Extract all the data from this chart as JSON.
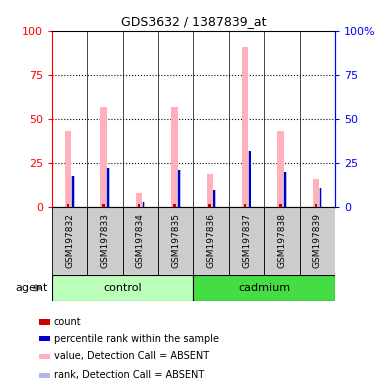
{
  "title": "GDS3632 / 1387839_at",
  "samples": [
    "GSM197832",
    "GSM197833",
    "GSM197834",
    "GSM197835",
    "GSM197836",
    "GSM197837",
    "GSM197838",
    "GSM197839"
  ],
  "groups": [
    "control",
    "control",
    "control",
    "control",
    "cadmium",
    "cadmium",
    "cadmium",
    "cadmium"
  ],
  "value_absent": [
    43,
    57,
    8,
    57,
    19,
    91,
    43,
    16
  ],
  "rank_absent": [
    18,
    22,
    3,
    21,
    10,
    32,
    20,
    11
  ],
  "count_vals": [
    2,
    2,
    2,
    2,
    2,
    2,
    2,
    2
  ],
  "pct_rank_vals": [
    18,
    22,
    3,
    21,
    10,
    32,
    20,
    11
  ],
  "ylim": [
    0,
    100
  ],
  "yticks": [
    0,
    25,
    50,
    75,
    100
  ],
  "color_value_absent": "#ffb0bb",
  "color_rank_absent": "#b0b8e8",
  "color_count": "#cc0000",
  "color_pct_rank": "#0000cc",
  "control_color_light": "#bbffbb",
  "cadmium_color": "#44dd44",
  "sample_bg": "#cccccc",
  "plot_bg": "#ffffff",
  "legend_items": [
    {
      "color": "#cc0000",
      "label": "count"
    },
    {
      "color": "#0000cc",
      "label": "percentile rank within the sample"
    },
    {
      "color": "#ffb0bb",
      "label": "value, Detection Call = ABSENT"
    },
    {
      "color": "#b0b8e8",
      "label": "rank, Detection Call = ABSENT"
    }
  ]
}
